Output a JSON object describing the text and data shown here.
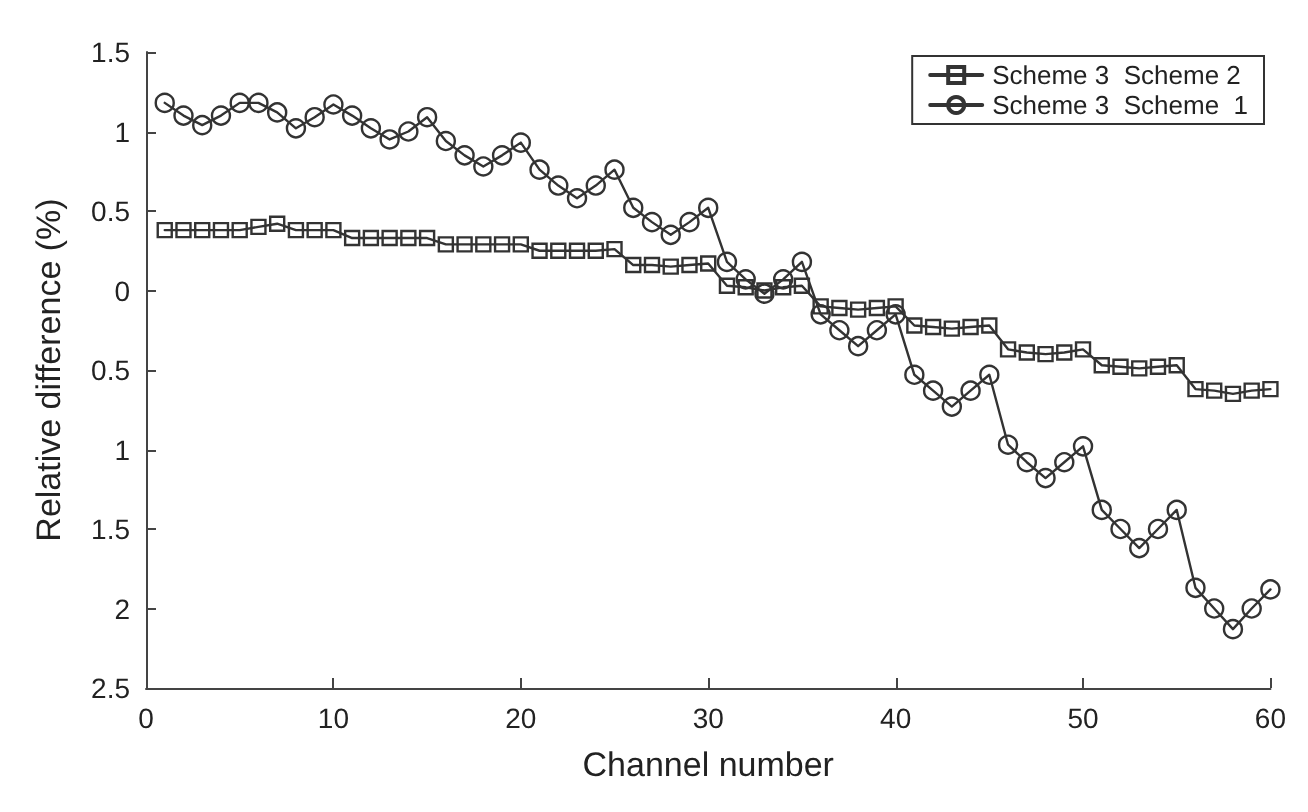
{
  "chart_data": {
    "type": "line",
    "xlabel": "Channel number",
    "ylabel": "Relative difference (%)",
    "x": [
      1,
      2,
      3,
      4,
      5,
      6,
      7,
      8,
      9,
      10,
      11,
      12,
      13,
      14,
      15,
      16,
      17,
      18,
      19,
      20,
      21,
      22,
      23,
      24,
      25,
      26,
      27,
      28,
      29,
      30,
      31,
      32,
      33,
      34,
      35,
      36,
      37,
      38,
      39,
      40,
      41,
      42,
      43,
      44,
      45,
      46,
      47,
      48,
      49,
      50,
      51,
      52,
      53,
      54,
      55,
      56,
      57,
      58,
      59,
      60
    ],
    "series": [
      {
        "name": "Scheme 3  Scheme 2",
        "color": "#333333",
        "marker": "square",
        "values": [
          0.38,
          0.38,
          0.38,
          0.38,
          0.38,
          0.4,
          0.42,
          0.38,
          0.38,
          0.38,
          0.33,
          0.33,
          0.33,
          0.33,
          0.33,
          0.29,
          0.29,
          0.29,
          0.29,
          0.29,
          0.25,
          0.25,
          0.25,
          0.25,
          0.26,
          0.16,
          0.16,
          0.15,
          0.16,
          0.17,
          0.03,
          0.02,
          0.0,
          0.02,
          0.03,
          -0.1,
          -0.11,
          -0.12,
          -0.11,
          -0.1,
          -0.22,
          -0.23,
          -0.24,
          -0.23,
          -0.22,
          -0.37,
          -0.39,
          -0.4,
          -0.39,
          -0.37,
          -0.47,
          -0.48,
          -0.49,
          -0.48,
          -0.47,
          -0.62,
          -0.63,
          -0.65,
          -0.63,
          -0.62
        ]
      },
      {
        "name": "Scheme 3  Scheme  1",
        "color": "#333333",
        "marker": "circle",
        "values": [
          1.18,
          1.1,
          1.04,
          1.1,
          1.18,
          1.18,
          1.12,
          1.02,
          1.09,
          1.17,
          1.1,
          1.02,
          0.95,
          1.0,
          1.09,
          0.94,
          0.85,
          0.78,
          0.85,
          0.93,
          0.76,
          0.66,
          0.58,
          0.66,
          0.76,
          0.52,
          0.43,
          0.35,
          0.43,
          0.52,
          0.18,
          0.07,
          -0.02,
          0.07,
          0.18,
          -0.15,
          -0.25,
          -0.35,
          -0.25,
          -0.15,
          -0.53,
          -0.63,
          -0.73,
          -0.63,
          -0.53,
          -0.97,
          -1.08,
          -1.18,
          -1.08,
          -0.98,
          -1.38,
          -1.5,
          -1.62,
          -1.5,
          -1.38,
          -1.87,
          -2.0,
          -2.13,
          -2.0,
          -1.88
        ]
      }
    ],
    "xlim": [
      0,
      60
    ],
    "xticks": [
      0,
      10,
      20,
      30,
      40,
      50,
      60
    ],
    "ylim": [
      -2.5,
      1.5
    ],
    "yticks": [
      1.5,
      1,
      0.5,
      0,
      {
        "value": -0.5,
        "label": "0.5"
      },
      {
        "value": -1,
        "label": "1"
      },
      {
        "value": -1.5,
        "label": "1.5"
      },
      {
        "value": -2,
        "label": "2"
      },
      {
        "value": -2.5,
        "label": "2.5"
      }
    ],
    "grid": false,
    "legend": "top right",
    "line_style": "solid"
  }
}
